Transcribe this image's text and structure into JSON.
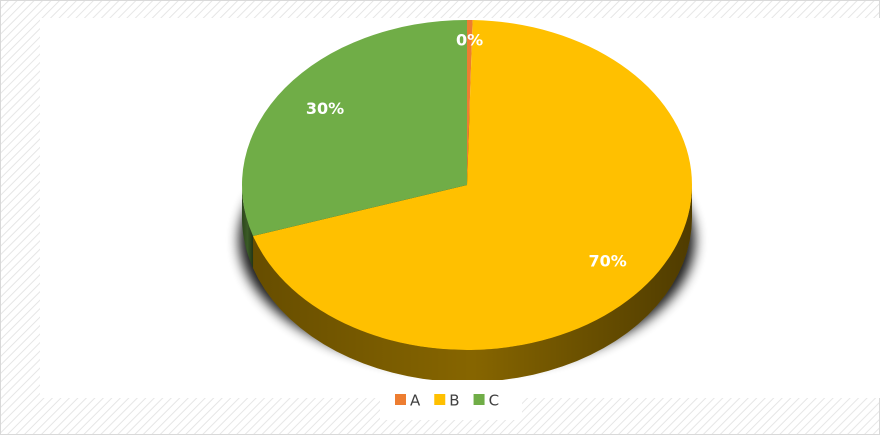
{
  "chart_data": {
    "type": "pie",
    "categories": [
      "A",
      "B",
      "C"
    ],
    "values": [
      0.4,
      69.6,
      30
    ],
    "value_labels": [
      "0%",
      "70%",
      "30%"
    ],
    "colors": [
      "#ed7d31",
      "#ffc000",
      "#70ad47"
    ],
    "legend": "bottom"
  }
}
